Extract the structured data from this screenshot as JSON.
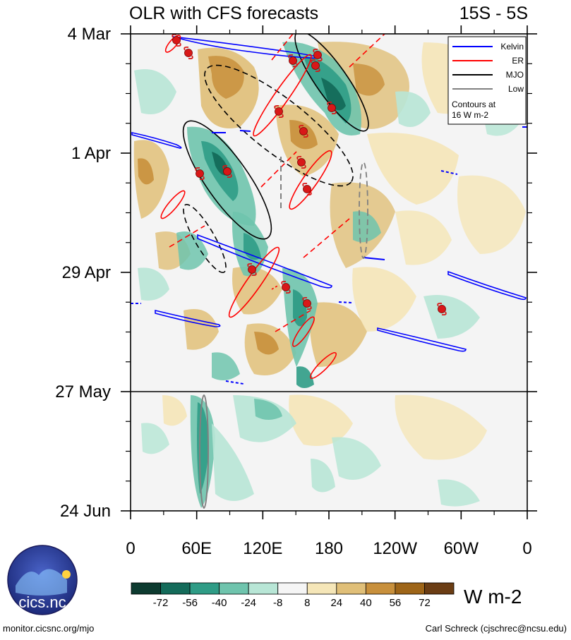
{
  "chart_data": {
    "type": "heatmap",
    "title": "OLR with CFS forecasts",
    "region": "15S - 5S",
    "xlabel": "",
    "ylabel": "",
    "x_ticks": [
      "0",
      "60E",
      "120E",
      "180",
      "120W",
      "60W",
      "0"
    ],
    "y_ticks": [
      "4 Mar",
      "1 Apr",
      "29 Apr",
      "27 May",
      "24 Jun"
    ],
    "forecast_divider_date": "27 May",
    "units": "W m-2",
    "colorbar": {
      "labels": [
        "-72",
        "-56",
        "-40",
        "-24",
        "-8",
        "8",
        "24",
        "40",
        "56",
        "72"
      ],
      "colors": [
        "#0d3b30",
        "#146b5a",
        "#2f9c86",
        "#6fc4ad",
        "#b8e6d6",
        "#f5f5f5",
        "#f5e6b8",
        "#e0bf78",
        "#c8903c",
        "#9e6518",
        "#6b3d14"
      ]
    },
    "legend": [
      {
        "label": "Kelvin",
        "color": "#0000ff"
      },
      {
        "label": "ER",
        "color": "#ff0000"
      },
      {
        "label": "MJO",
        "color": "#000000"
      },
      {
        "label": "Low",
        "color": "#808080"
      }
    ],
    "legend_note": "Contours at 16 W m-2"
  },
  "footer": {
    "left": "monitor.cicsnc.org/mjo",
    "right": "Carl Schreck (cjschrec@ncsu.edu)",
    "logo_text": "cics.nc"
  }
}
